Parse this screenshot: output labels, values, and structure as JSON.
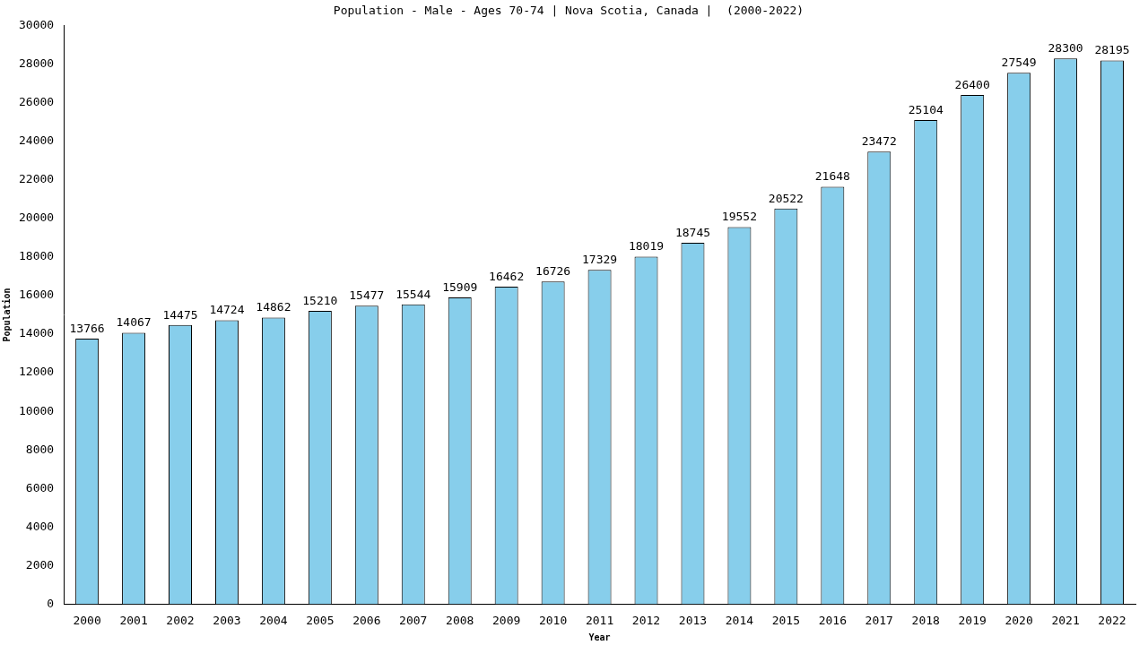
{
  "chart_data": {
    "type": "bar",
    "title": "Population - Male - Ages 70-74 | Nova Scotia, Canada |  (2000-2022)",
    "x_label": "Year",
    "y_label": "Population",
    "categories": [
      "2000",
      "2001",
      "2002",
      "2003",
      "2004",
      "2005",
      "2006",
      "2007",
      "2008",
      "2009",
      "2010",
      "2011",
      "2012",
      "2013",
      "2014",
      "2015",
      "2016",
      "2017",
      "2018",
      "2019",
      "2020",
      "2021",
      "2022"
    ],
    "values": [
      13766,
      14067,
      14475,
      14724,
      14862,
      15210,
      15477,
      15544,
      15909,
      16462,
      16726,
      17329,
      18019,
      18745,
      19552,
      20522,
      21648,
      23472,
      25104,
      26400,
      27549,
      28300,
      28195
    ],
    "color": "#87ceeb",
    "ylim": [
      0,
      30000
    ],
    "yticks": [
      0,
      2000,
      4000,
      6000,
      8000,
      10000,
      12000,
      14000,
      16000,
      18000,
      20000,
      22000,
      24000,
      26000,
      28000,
      30000
    ],
    "grid": false,
    "data_labels": true
  }
}
